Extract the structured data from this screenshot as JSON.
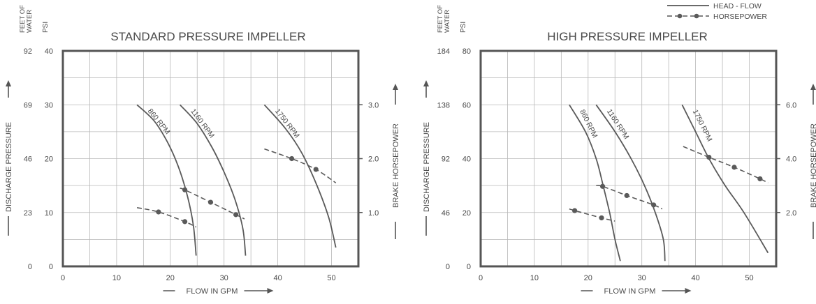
{
  "legend": {
    "head_flow": "HEAD - FLOW",
    "horsepower": "HORSEPOWER"
  },
  "chart_data": [
    {
      "type": "line",
      "title": "STANDARD PRESSURE IMPELLER",
      "xlabel": "FLOW IN GPM",
      "ylabel": "DISCHARGE PRESSURE",
      "y2label": "BRAKE HORSEPOWER",
      "y_feet_header": "FEET OF WATER",
      "y_psi_header": "PSI",
      "xlim": [
        0,
        55
      ],
      "ylim": [
        0,
        40
      ],
      "y2lim": [
        0,
        4
      ],
      "x_ticks": [
        "0",
        "10",
        "20",
        "30",
        "40",
        "50"
      ],
      "y_ticks_psi": [
        "0",
        "10",
        "20",
        "30",
        "40"
      ],
      "y_ticks_feet": [
        "0",
        "23",
        "46",
        "69",
        "92"
      ],
      "y2_ticks": [
        "1.0",
        "2.0",
        "3.0"
      ],
      "grid": true,
      "head_flow": [
        {
          "label": "860 RPM",
          "points": [
            [
              13.8,
              30
            ],
            [
              17,
              27
            ],
            [
              19.5,
              23
            ],
            [
              21.5,
              18.5
            ],
            [
              23.2,
              13
            ],
            [
              24.3,
              7.5
            ],
            [
              24.8,
              2
            ]
          ]
        },
        {
          "label": "1160 RPM",
          "points": [
            [
              21.8,
              30
            ],
            [
              25,
              26.5
            ],
            [
              27.8,
              22
            ],
            [
              30,
              17.5
            ],
            [
              32,
              12.5
            ],
            [
              33.5,
              7
            ],
            [
              34,
              2
            ]
          ]
        },
        {
          "label": "1750 RPM",
          "points": [
            [
              37.5,
              30
            ],
            [
              41.5,
              25.5
            ],
            [
              44.5,
              21
            ],
            [
              47.3,
              15
            ],
            [
              49.5,
              9
            ],
            [
              50.8,
              3.5
            ]
          ]
        }
      ],
      "horsepower": [
        {
          "label": "860 RPM",
          "points": [
            [
              13.8,
              1.09
            ],
            [
              17.8,
              1.01
            ],
            [
              22.7,
              0.83
            ],
            [
              24.8,
              0.73
            ]
          ]
        },
        {
          "label": "1160 RPM",
          "points": [
            [
              21.8,
              1.45
            ],
            [
              22.7,
              1.42
            ],
            [
              27.5,
              1.19
            ],
            [
              32.2,
              0.96
            ],
            [
              33.8,
              0.88
            ]
          ]
        },
        {
          "label": "1750 RPM",
          "points": [
            [
              37.5,
              2.18
            ],
            [
              42.6,
              2.0
            ],
            [
              47.1,
              1.8
            ],
            [
              50.8,
              1.55
            ]
          ]
        }
      ]
    },
    {
      "type": "line",
      "title": "HIGH PRESSURE IMPELLER",
      "xlabel": "FLOW IN GPM",
      "ylabel": "DISCHARGE PRESSURE",
      "y2label": "BRAKE HORSEPOWER",
      "y_feet_header": "FEET OF WATER",
      "y_psi_header": "PSI",
      "xlim": [
        0,
        55
      ],
      "ylim": [
        0,
        80
      ],
      "y2lim": [
        0,
        8
      ],
      "x_ticks": [
        "0",
        "10",
        "20",
        "30",
        "40",
        "50"
      ],
      "y_ticks_psi": [
        "0",
        "20",
        "40",
        "60",
        "80"
      ],
      "y_ticks_feet": [
        "0",
        "46",
        "92",
        "138",
        "184"
      ],
      "y2_ticks": [
        "2.0",
        "4.0",
        "6.0"
      ],
      "grid": true,
      "head_flow": [
        {
          "label": "860 RPM",
          "points": [
            [
              16.5,
              60
            ],
            [
              19.5,
              50
            ],
            [
              21.5,
              40
            ],
            [
              22.8,
              30
            ],
            [
              24,
              20
            ],
            [
              25,
              10
            ],
            [
              26,
              2
            ]
          ]
        },
        {
          "label": "1160 RPM",
          "points": [
            [
              21.5,
              60
            ],
            [
              25,
              50
            ],
            [
              28,
              40
            ],
            [
              30.5,
              30
            ],
            [
              32.5,
              20
            ],
            [
              34,
              10
            ],
            [
              34.3,
              2
            ]
          ]
        },
        {
          "label": "1750 RPM",
          "points": [
            [
              37.5,
              60
            ],
            [
              40,
              50
            ],
            [
              42.5,
              40
            ],
            [
              45.5,
              30
            ],
            [
              49,
              20
            ],
            [
              53.5,
              5
            ]
          ]
        }
      ],
      "horsepower": [
        {
          "label": "860 RPM",
          "points": [
            [
              16.5,
              2.13
            ],
            [
              17.5,
              2.07
            ],
            [
              22.5,
              1.8
            ],
            [
              25,
              1.68
            ]
          ]
        },
        {
          "label": "1160 RPM",
          "points": [
            [
              21.5,
              3.0
            ],
            [
              22.7,
              2.97
            ],
            [
              27.2,
              2.63
            ],
            [
              32.2,
              2.28
            ],
            [
              33.8,
              2.13
            ]
          ]
        },
        {
          "label": "1750 RPM",
          "points": [
            [
              37.7,
              4.45
            ],
            [
              42.5,
              4.05
            ],
            [
              47.2,
              3.68
            ],
            [
              52,
              3.25
            ],
            [
              53.5,
              3.1
            ]
          ]
        }
      ]
    }
  ]
}
